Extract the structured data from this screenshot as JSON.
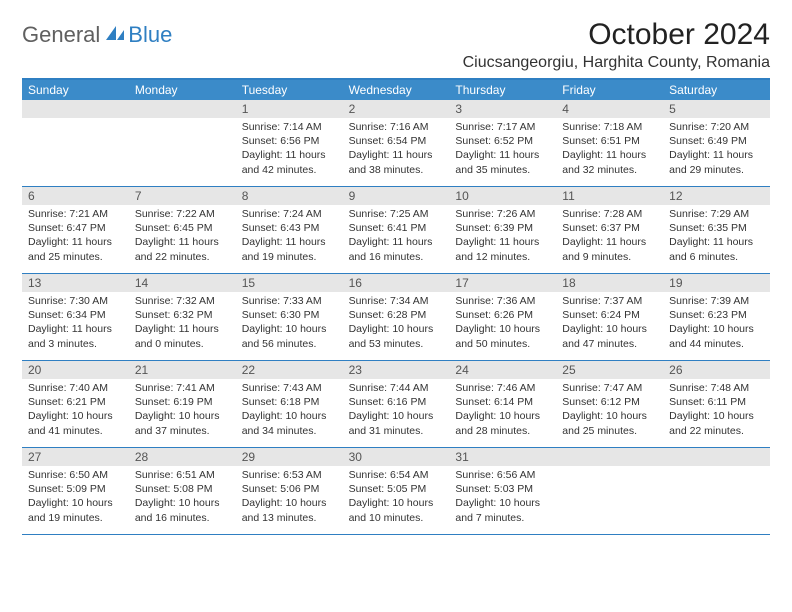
{
  "logo": {
    "text_general": "General",
    "text_blue": "Blue",
    "icon_color": "#2f7fc2"
  },
  "title": "October 2024",
  "location": "Ciucsangeorgiu, Harghita County, Romania",
  "colors": {
    "header_bg": "#3b8bc9",
    "border": "#2f7fc2",
    "daynum_bg": "#e6e6e6"
  },
  "day_labels": [
    "Sunday",
    "Monday",
    "Tuesday",
    "Wednesday",
    "Thursday",
    "Friday",
    "Saturday"
  ],
  "weeks": [
    [
      {
        "n": "",
        "sr": "",
        "ss": "",
        "dl": ""
      },
      {
        "n": "",
        "sr": "",
        "ss": "",
        "dl": ""
      },
      {
        "n": "1",
        "sr": "Sunrise: 7:14 AM",
        "ss": "Sunset: 6:56 PM",
        "dl": "Daylight: 11 hours and 42 minutes."
      },
      {
        "n": "2",
        "sr": "Sunrise: 7:16 AM",
        "ss": "Sunset: 6:54 PM",
        "dl": "Daylight: 11 hours and 38 minutes."
      },
      {
        "n": "3",
        "sr": "Sunrise: 7:17 AM",
        "ss": "Sunset: 6:52 PM",
        "dl": "Daylight: 11 hours and 35 minutes."
      },
      {
        "n": "4",
        "sr": "Sunrise: 7:18 AM",
        "ss": "Sunset: 6:51 PM",
        "dl": "Daylight: 11 hours and 32 minutes."
      },
      {
        "n": "5",
        "sr": "Sunrise: 7:20 AM",
        "ss": "Sunset: 6:49 PM",
        "dl": "Daylight: 11 hours and 29 minutes."
      }
    ],
    [
      {
        "n": "6",
        "sr": "Sunrise: 7:21 AM",
        "ss": "Sunset: 6:47 PM",
        "dl": "Daylight: 11 hours and 25 minutes."
      },
      {
        "n": "7",
        "sr": "Sunrise: 7:22 AM",
        "ss": "Sunset: 6:45 PM",
        "dl": "Daylight: 11 hours and 22 minutes."
      },
      {
        "n": "8",
        "sr": "Sunrise: 7:24 AM",
        "ss": "Sunset: 6:43 PM",
        "dl": "Daylight: 11 hours and 19 minutes."
      },
      {
        "n": "9",
        "sr": "Sunrise: 7:25 AM",
        "ss": "Sunset: 6:41 PM",
        "dl": "Daylight: 11 hours and 16 minutes."
      },
      {
        "n": "10",
        "sr": "Sunrise: 7:26 AM",
        "ss": "Sunset: 6:39 PM",
        "dl": "Daylight: 11 hours and 12 minutes."
      },
      {
        "n": "11",
        "sr": "Sunrise: 7:28 AM",
        "ss": "Sunset: 6:37 PM",
        "dl": "Daylight: 11 hours and 9 minutes."
      },
      {
        "n": "12",
        "sr": "Sunrise: 7:29 AM",
        "ss": "Sunset: 6:35 PM",
        "dl": "Daylight: 11 hours and 6 minutes."
      }
    ],
    [
      {
        "n": "13",
        "sr": "Sunrise: 7:30 AM",
        "ss": "Sunset: 6:34 PM",
        "dl": "Daylight: 11 hours and 3 minutes."
      },
      {
        "n": "14",
        "sr": "Sunrise: 7:32 AM",
        "ss": "Sunset: 6:32 PM",
        "dl": "Daylight: 11 hours and 0 minutes."
      },
      {
        "n": "15",
        "sr": "Sunrise: 7:33 AM",
        "ss": "Sunset: 6:30 PM",
        "dl": "Daylight: 10 hours and 56 minutes."
      },
      {
        "n": "16",
        "sr": "Sunrise: 7:34 AM",
        "ss": "Sunset: 6:28 PM",
        "dl": "Daylight: 10 hours and 53 minutes."
      },
      {
        "n": "17",
        "sr": "Sunrise: 7:36 AM",
        "ss": "Sunset: 6:26 PM",
        "dl": "Daylight: 10 hours and 50 minutes."
      },
      {
        "n": "18",
        "sr": "Sunrise: 7:37 AM",
        "ss": "Sunset: 6:24 PM",
        "dl": "Daylight: 10 hours and 47 minutes."
      },
      {
        "n": "19",
        "sr": "Sunrise: 7:39 AM",
        "ss": "Sunset: 6:23 PM",
        "dl": "Daylight: 10 hours and 44 minutes."
      }
    ],
    [
      {
        "n": "20",
        "sr": "Sunrise: 7:40 AM",
        "ss": "Sunset: 6:21 PM",
        "dl": "Daylight: 10 hours and 41 minutes."
      },
      {
        "n": "21",
        "sr": "Sunrise: 7:41 AM",
        "ss": "Sunset: 6:19 PM",
        "dl": "Daylight: 10 hours and 37 minutes."
      },
      {
        "n": "22",
        "sr": "Sunrise: 7:43 AM",
        "ss": "Sunset: 6:18 PM",
        "dl": "Daylight: 10 hours and 34 minutes."
      },
      {
        "n": "23",
        "sr": "Sunrise: 7:44 AM",
        "ss": "Sunset: 6:16 PM",
        "dl": "Daylight: 10 hours and 31 minutes."
      },
      {
        "n": "24",
        "sr": "Sunrise: 7:46 AM",
        "ss": "Sunset: 6:14 PM",
        "dl": "Daylight: 10 hours and 28 minutes."
      },
      {
        "n": "25",
        "sr": "Sunrise: 7:47 AM",
        "ss": "Sunset: 6:12 PM",
        "dl": "Daylight: 10 hours and 25 minutes."
      },
      {
        "n": "26",
        "sr": "Sunrise: 7:48 AM",
        "ss": "Sunset: 6:11 PM",
        "dl": "Daylight: 10 hours and 22 minutes."
      }
    ],
    [
      {
        "n": "27",
        "sr": "Sunrise: 6:50 AM",
        "ss": "Sunset: 5:09 PM",
        "dl": "Daylight: 10 hours and 19 minutes."
      },
      {
        "n": "28",
        "sr": "Sunrise: 6:51 AM",
        "ss": "Sunset: 5:08 PM",
        "dl": "Daylight: 10 hours and 16 minutes."
      },
      {
        "n": "29",
        "sr": "Sunrise: 6:53 AM",
        "ss": "Sunset: 5:06 PM",
        "dl": "Daylight: 10 hours and 13 minutes."
      },
      {
        "n": "30",
        "sr": "Sunrise: 6:54 AM",
        "ss": "Sunset: 5:05 PM",
        "dl": "Daylight: 10 hours and 10 minutes."
      },
      {
        "n": "31",
        "sr": "Sunrise: 6:56 AM",
        "ss": "Sunset: 5:03 PM",
        "dl": "Daylight: 10 hours and 7 minutes."
      },
      {
        "n": "",
        "sr": "",
        "ss": "",
        "dl": ""
      },
      {
        "n": "",
        "sr": "",
        "ss": "",
        "dl": ""
      }
    ]
  ]
}
